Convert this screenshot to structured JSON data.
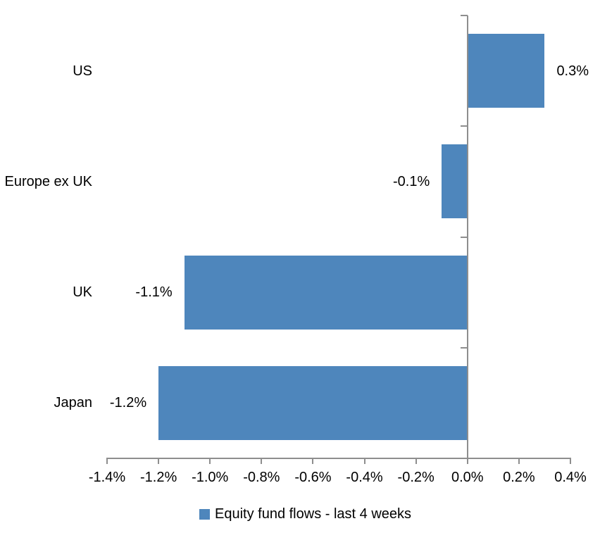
{
  "chart_data": {
    "type": "bar",
    "orientation": "horizontal",
    "title": "",
    "categories": [
      "US",
      "Europe ex UK",
      "UK",
      "Japan"
    ],
    "series": [
      {
        "name": "Equity fund flows - last 4 weeks",
        "values": [
          0.3,
          -0.1,
          -1.1,
          -1.2
        ],
        "data_labels": [
          "0.3%",
          "-0.1%",
          "-1.1%",
          "-1.2%"
        ]
      }
    ],
    "xlabel": "",
    "ylabel": "",
    "xlim": [
      -1.4,
      0.4
    ],
    "x_ticks": [
      -1.4,
      -1.2,
      -1.0,
      -0.8,
      -0.6,
      -0.4,
      -0.2,
      0.0,
      0.2,
      0.4
    ],
    "x_tick_labels": [
      "-1.4%",
      "-1.2%",
      "-1.0%",
      "-0.8%",
      "-0.6%",
      "-0.4%",
      "-0.2%",
      "0.0%",
      "0.2%",
      "0.4%"
    ],
    "grid": false,
    "legend_position": "bottom"
  },
  "legend": {
    "items": [
      {
        "label": "Equity fund flows - last 4 weeks",
        "color": "#4e86bc"
      }
    ]
  },
  "colors": {
    "bar": "#4e86bc",
    "axis": "#8e8e8e",
    "text": "#000000",
    "background": "#ffffff"
  }
}
